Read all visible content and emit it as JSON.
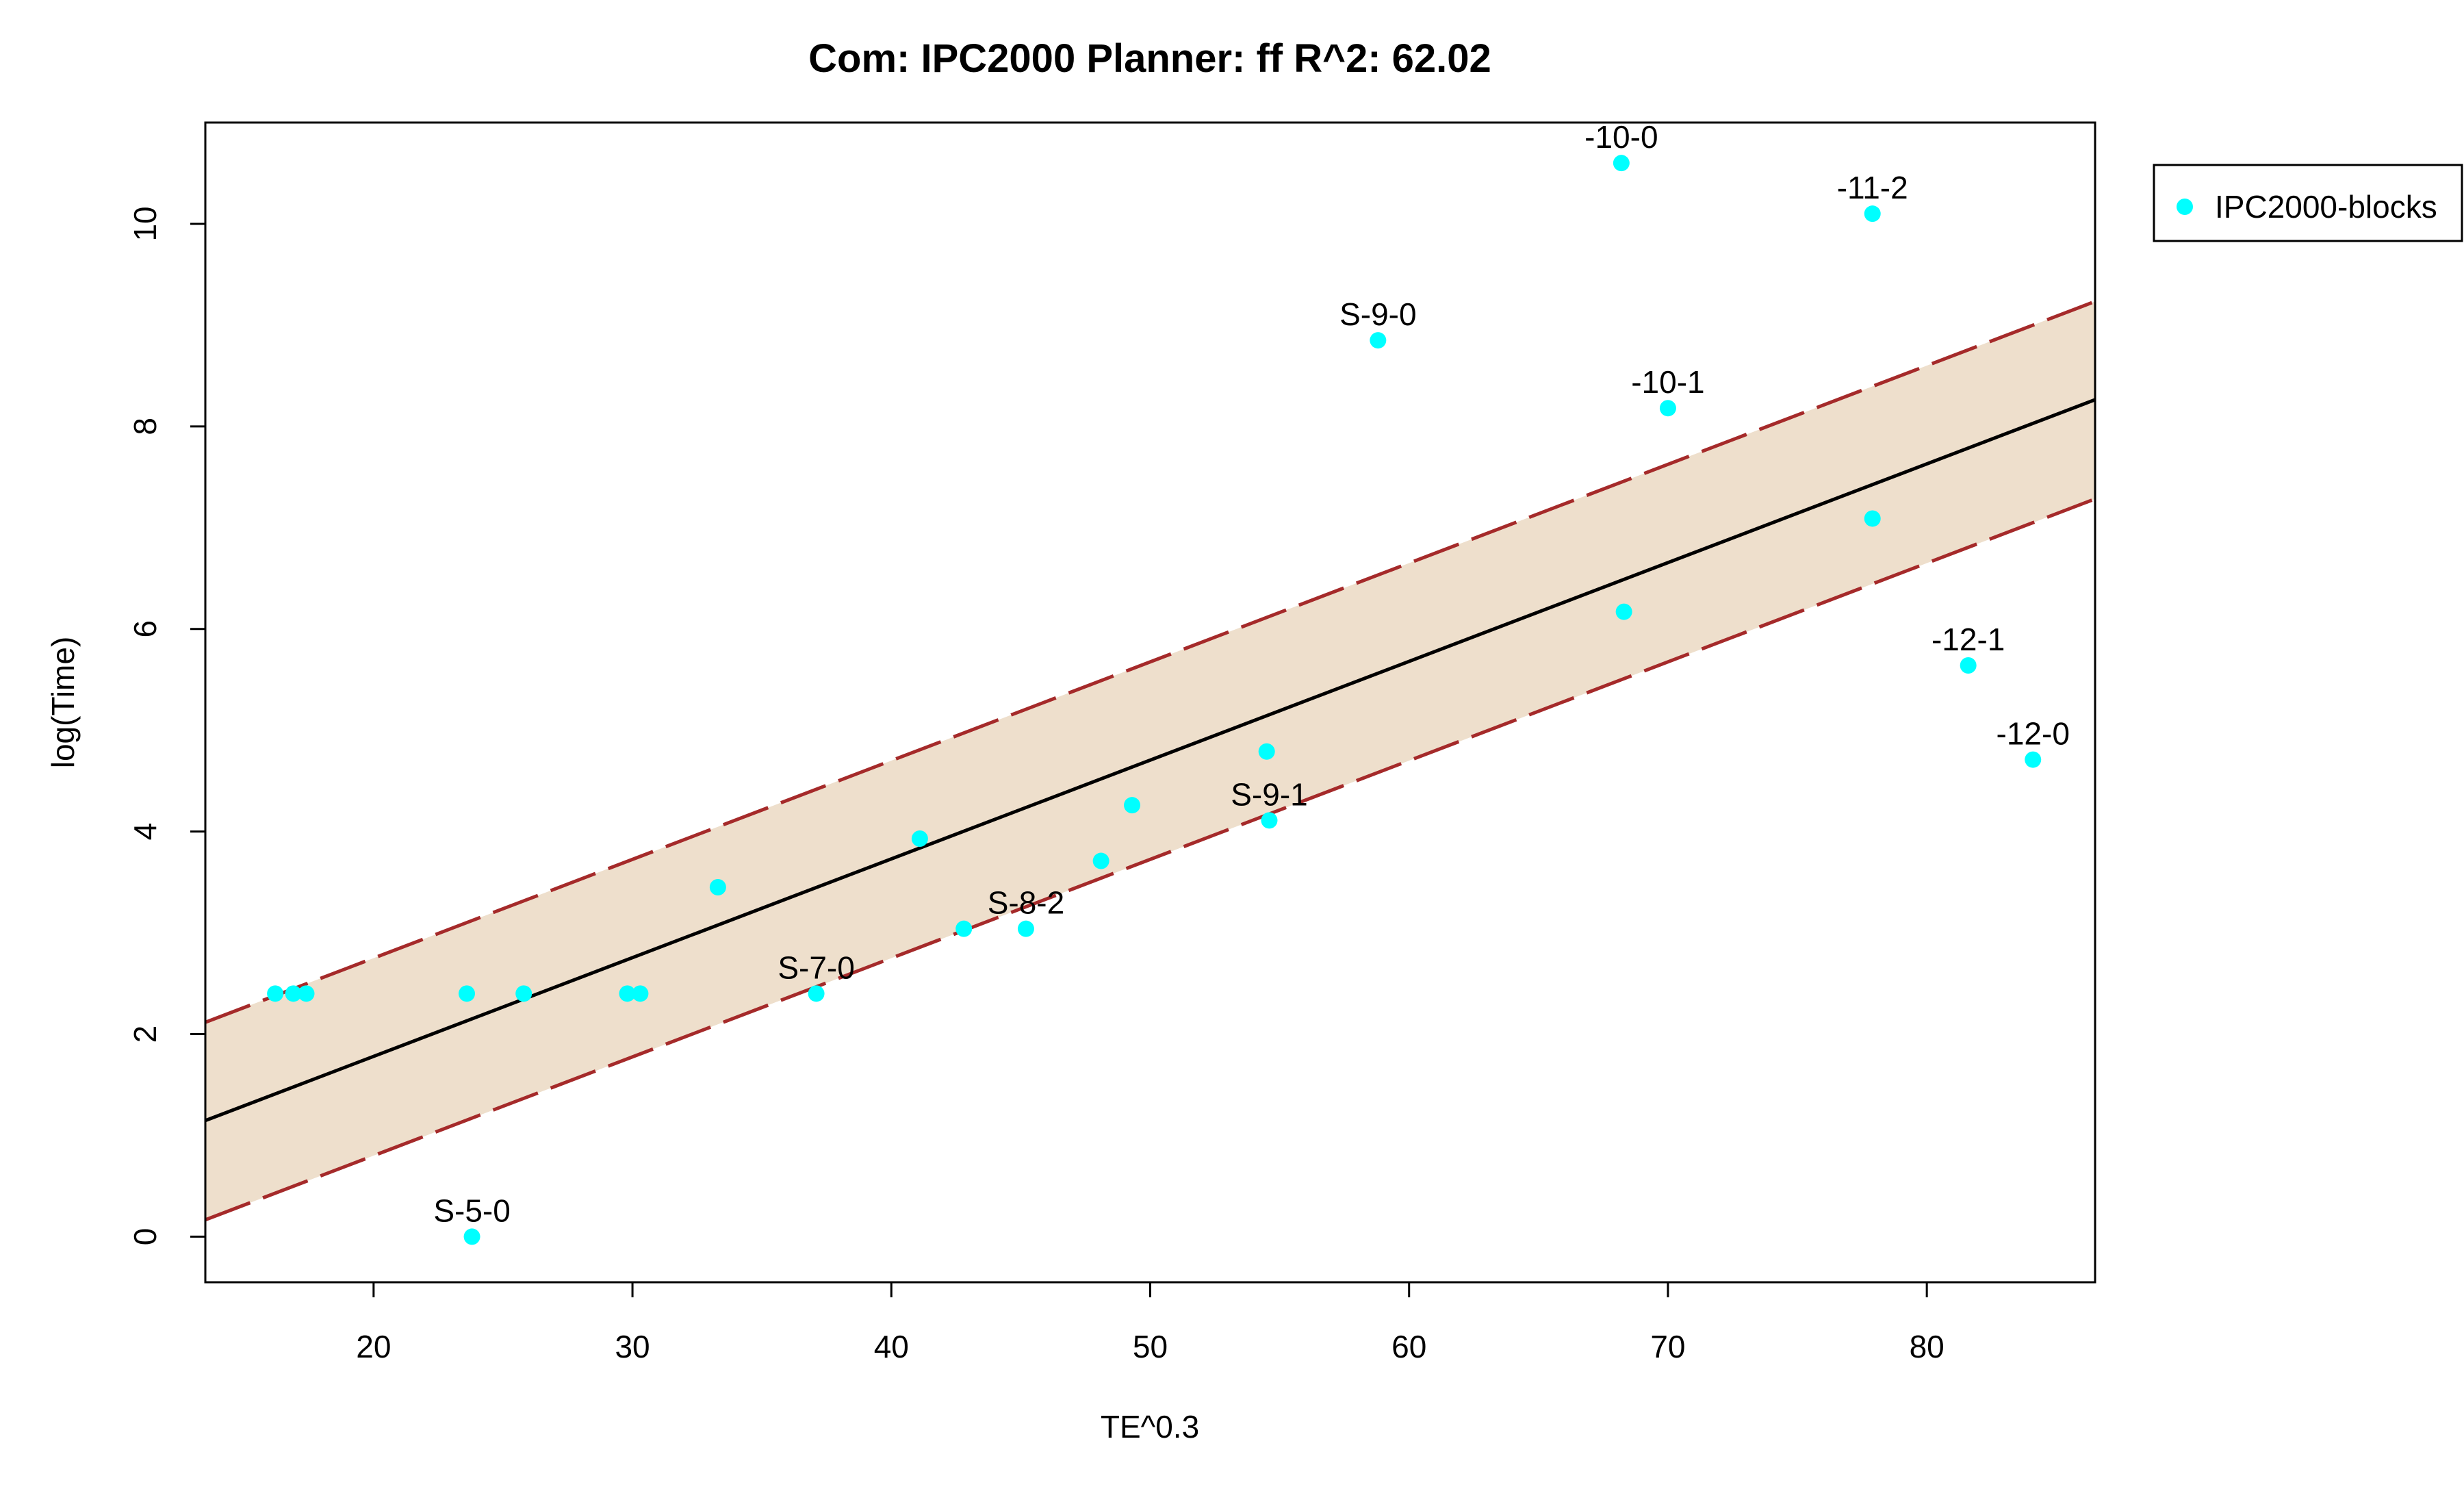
{
  "chart_data": {
    "type": "scatter",
    "title": "Com: IPC2000 Planner: ff R^2: 62.02",
    "xlabel": "TE^0.3",
    "ylabel": "log(Time)",
    "xlim": [
      13.5,
      86.5
    ],
    "ylim": [
      -0.45,
      11.0
    ],
    "x_ticks": [
      20,
      30,
      40,
      50,
      60,
      70,
      80
    ],
    "y_ticks": [
      0,
      2,
      4,
      6,
      8,
      10
    ],
    "grid": false,
    "legend": {
      "position": "outside-top-right",
      "entries": [
        {
          "label": "IPC2000-blocks",
          "color": "#00FFFF"
        }
      ]
    },
    "colors": {
      "points": "#00FFFF",
      "fit_line": "#000000",
      "band_fill": "#EEDFCC",
      "band_line": "#A52A2A"
    },
    "fit": {
      "intercept": -0.17,
      "slope": 0.0975
    },
    "band": {
      "upper": {
        "intercept": 0.8,
        "slope": 0.0975
      },
      "lower": {
        "intercept": -1.15,
        "slope": 0.0975
      }
    },
    "series": [
      {
        "name": "IPC2000-blocks",
        "points": [
          {
            "x": 16.2,
            "y": 2.4,
            "label": ""
          },
          {
            "x": 16.9,
            "y": 2.4,
            "label": ""
          },
          {
            "x": 17.4,
            "y": 2.4,
            "label": ""
          },
          {
            "x": 23.6,
            "y": 2.4,
            "label": ""
          },
          {
            "x": 23.8,
            "y": 0.0,
            "label": "S-5-0"
          },
          {
            "x": 25.8,
            "y": 2.4,
            "label": ""
          },
          {
            "x": 29.8,
            "y": 2.4,
            "label": ""
          },
          {
            "x": 30.3,
            "y": 2.4,
            "label": ""
          },
          {
            "x": 33.3,
            "y": 3.45,
            "label": ""
          },
          {
            "x": 37.1,
            "y": 2.4,
            "label": "S-7-0"
          },
          {
            "x": 41.1,
            "y": 3.93,
            "label": ""
          },
          {
            "x": 42.8,
            "y": 3.04,
            "label": ""
          },
          {
            "x": 45.2,
            "y": 3.04,
            "label": "S-8-2"
          },
          {
            "x": 48.1,
            "y": 3.71,
            "label": ""
          },
          {
            "x": 49.3,
            "y": 4.26,
            "label": ""
          },
          {
            "x": 54.5,
            "y": 4.79,
            "label": ""
          },
          {
            "x": 54.6,
            "y": 4.11,
            "label": "S-9-1"
          },
          {
            "x": 58.8,
            "y": 8.85,
            "label": "S-9-0"
          },
          {
            "x": 68.2,
            "y": 10.6,
            "label": "-10-0"
          },
          {
            "x": 68.3,
            "y": 6.17,
            "label": ""
          },
          {
            "x": 70.0,
            "y": 8.18,
            "label": "-10-1"
          },
          {
            "x": 77.9,
            "y": 10.1,
            "label": "-11-2"
          },
          {
            "x": 77.9,
            "y": 7.09,
            "label": ""
          },
          {
            "x": 81.6,
            "y": 5.64,
            "label": "-12-1"
          },
          {
            "x": 84.1,
            "y": 4.71,
            "label": "-12-0"
          }
        ]
      }
    ]
  }
}
